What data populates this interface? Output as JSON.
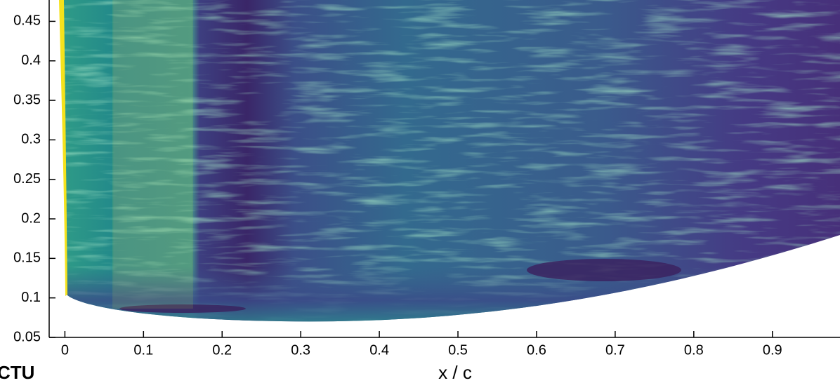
{
  "chart_data": {
    "type": "contour",
    "x_label": "x / c",
    "annotation": "CTU",
    "xlim": [
      -0.02,
      0.986
    ],
    "ylim": [
      0.05,
      0.477
    ],
    "xticks": [
      0,
      0.1,
      0.2,
      0.3,
      0.4,
      0.5,
      0.6,
      0.7,
      0.8,
      0.9
    ],
    "yticks": [
      0.05,
      0.1,
      0.15,
      0.2,
      0.25,
      0.3,
      0.35,
      0.4,
      0.45
    ]
  }
}
